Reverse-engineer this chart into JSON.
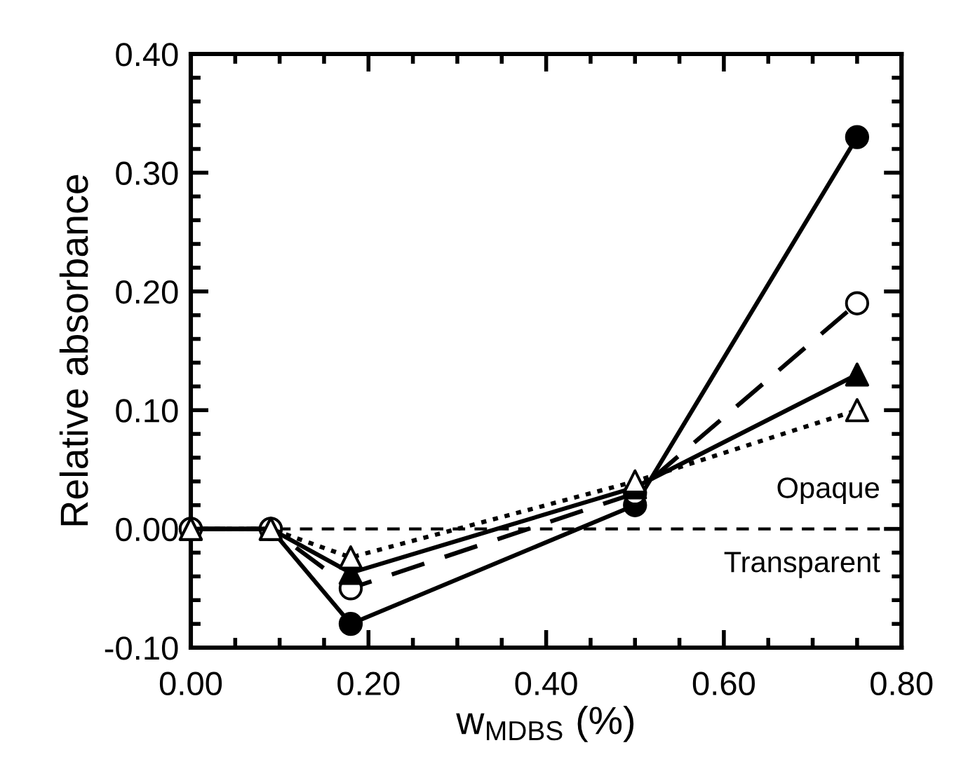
{
  "chart_data": {
    "type": "line",
    "xlabel": "w$_{MDBS}$ (%)",
    "ylabel": "Relative absorbance",
    "xlim": [
      0,
      0.8
    ],
    "ylim": [
      -0.1,
      0.4
    ],
    "xticks": [
      {
        "value": 0,
        "label": "0.00"
      },
      {
        "value": 0.2,
        "label": "0.20"
      },
      {
        "value": 0.4,
        "label": "0.40"
      },
      {
        "value": 0.6,
        "label": "0.60"
      },
      {
        "value": 0.8,
        "label": "0.80"
      }
    ],
    "yticks": [
      {
        "value": -0.1,
        "label": "-0.10"
      },
      {
        "value": 0,
        "label": "0.00"
      },
      {
        "value": 0.1,
        "label": "0.10"
      },
      {
        "value": 0.2,
        "label": "0.20"
      },
      {
        "value": 0.3,
        "label": "0.30"
      },
      {
        "value": 0.4,
        "label": "0.40"
      }
    ],
    "x": [
      0,
      0.09,
      0.18,
      0.5,
      0.75
    ],
    "series": [
      {
        "color": "#000000",
        "marker": "circle",
        "line_style": "solid",
        "values": [
          0,
          0,
          -0.08,
          0.02,
          0.33
        ]
      },
      {
        "color": "#000000",
        "marker": "circle",
        "colors": [
          "#ffffff",
          "#ffffff",
          "#ffffff",
          "#ffffff",
          "#ffffff"
        ],
        "line_style": "dashed",
        "values": [
          0,
          0,
          -0.05,
          0.03,
          0.19
        ]
      },
      {
        "color": "#000000",
        "marker": "triangle",
        "line_style": "solid",
        "values": [
          0,
          0,
          -0.037,
          0.035,
          0.13
        ]
      },
      {
        "color": "#000000",
        "marker": "triangle",
        "colors": [
          "#ffffff",
          "#ffffff",
          "#ffffff",
          "#ffffff",
          "#ffffff"
        ],
        "line_style": "dotted",
        "values": [
          0,
          0,
          -0.024,
          0.04,
          0.1
        ]
      }
    ],
    "ref_lines": [
      {
        "axis": "y",
        "value": 0,
        "color": "#000000",
        "line_style": "dashed"
      }
    ],
    "annotations": [
      "Opaque",
      "Transparent"
    ],
    "grid": false,
    "legend": false
  }
}
